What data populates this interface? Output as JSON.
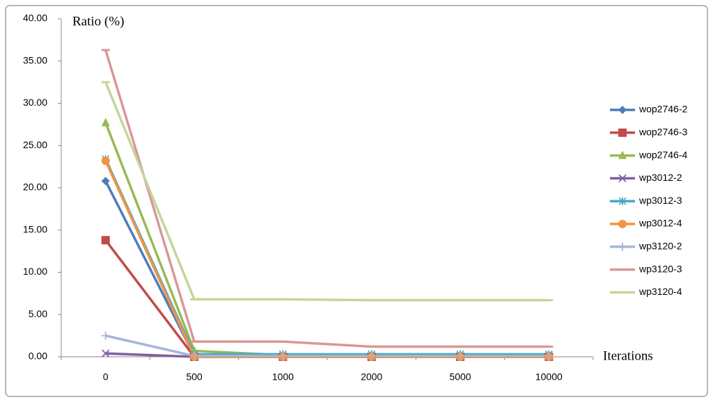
{
  "chart_data": {
    "type": "line",
    "y_label": "Ratio (%)",
    "x_label": "Iterations",
    "categories": [
      "0",
      "500",
      "1000",
      "2000",
      "5000",
      "10000"
    ],
    "ylim": [
      0,
      40
    ],
    "yticks": [
      {
        "value": 0,
        "label": "0.00"
      },
      {
        "value": 5,
        "label": "5.00"
      },
      {
        "value": 10,
        "label": "10.00"
      },
      {
        "value": 15,
        "label": "15.00"
      },
      {
        "value": 20,
        "label": "20.00"
      },
      {
        "value": 25,
        "label": "25.00"
      },
      {
        "value": 30,
        "label": "30.00"
      },
      {
        "value": 35,
        "label": "35.00"
      },
      {
        "value": 40,
        "label": "40.00"
      }
    ],
    "grid": false,
    "legend": "right",
    "series": [
      {
        "name": "wop2746-2",
        "color": "#4a7ebb",
        "marker": "diamond",
        "values": [
          20.8,
          0.1,
          0.1,
          0.1,
          0.1,
          0.1
        ]
      },
      {
        "name": "wop2746-3",
        "color": "#be4b48",
        "marker": "square",
        "values": [
          13.8,
          0,
          0,
          0,
          0,
          0
        ]
      },
      {
        "name": "wop2746-4",
        "color": "#98b954",
        "marker": "triangle",
        "values": [
          27.7,
          0.7,
          0.2,
          0.2,
          0.2,
          0.2
        ]
      },
      {
        "name": "wp3012-2",
        "color": "#7d60a0",
        "marker": "x",
        "values": [
          0.4,
          0,
          0,
          0,
          0,
          0
        ]
      },
      {
        "name": "wp3012-3",
        "color": "#46aac5",
        "marker": "star",
        "values": [
          23.4,
          0.3,
          0.3,
          0.3,
          0.3,
          0.3
        ]
      },
      {
        "name": "wp3012-4",
        "color": "#f69240",
        "marker": "circle",
        "values": [
          23.2,
          0,
          0,
          0,
          0,
          0
        ]
      },
      {
        "name": "wp3120-2",
        "color": "#a5b6d6",
        "marker": "plus",
        "values": [
          2.5,
          0.1,
          0.1,
          0.1,
          0.1,
          0.1
        ]
      },
      {
        "name": "wp3120-3",
        "color": "#d99795",
        "marker": "dash",
        "values": [
          36.3,
          1.8,
          1.8,
          1.2,
          1.2,
          1.2
        ]
      },
      {
        "name": "wp3120-4",
        "color": "#c3d69b",
        "marker": "dash",
        "values": [
          32.5,
          6.8,
          6.8,
          6.7,
          6.7,
          6.7
        ]
      }
    ]
  }
}
